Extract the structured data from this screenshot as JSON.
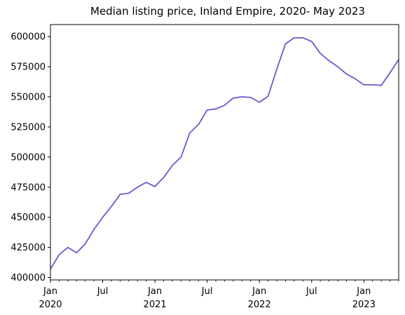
{
  "chart_data": {
    "type": "line",
    "title": "Median listing price, Inland Empire, 2020- May 2023",
    "xlabel": "",
    "ylabel": "",
    "ylim": [
      398000,
      610000
    ],
    "xlim": [
      "2020-01",
      "2023-05"
    ],
    "grid": false,
    "line_color": "#6a5acd",
    "y_ticks": [
      {
        "value": 400000,
        "label": "400000"
      },
      {
        "value": 425000,
        "label": "425000"
      },
      {
        "value": 450000,
        "label": "450000"
      },
      {
        "value": 475000,
        "label": "475000"
      },
      {
        "value": 500000,
        "label": "500000"
      },
      {
        "value": 525000,
        "label": "525000"
      },
      {
        "value": 550000,
        "label": "550000"
      },
      {
        "value": 575000,
        "label": "575000"
      },
      {
        "value": 600000,
        "label": "600000"
      }
    ],
    "x_major_ticks": [
      {
        "date": "2020-01",
        "label": "Jan",
        "year_label": "2020"
      },
      {
        "date": "2020-07",
        "label": "Jul",
        "year_label": ""
      },
      {
        "date": "2021-01",
        "label": "Jan",
        "year_label": "2021"
      },
      {
        "date": "2021-07",
        "label": "Jul",
        "year_label": ""
      },
      {
        "date": "2022-01",
        "label": "Jan",
        "year_label": "2022"
      },
      {
        "date": "2022-07",
        "label": "Jul",
        "year_label": ""
      },
      {
        "date": "2023-01",
        "label": "Jan",
        "year_label": "2023"
      }
    ],
    "series": [
      {
        "x": [
          "2020-01",
          "2020-02",
          "2020-03",
          "2020-04",
          "2020-05",
          "2020-06",
          "2020-07",
          "2020-08",
          "2020-09",
          "2020-10",
          "2020-11",
          "2020-12",
          "2021-01",
          "2021-02",
          "2021-03",
          "2021-04",
          "2021-05",
          "2021-06",
          "2021-07",
          "2021-08",
          "2021-09",
          "2021-10",
          "2021-11",
          "2021-12",
          "2022-01",
          "2022-02",
          "2022-03",
          "2022-04",
          "2022-05",
          "2022-06",
          "2022-07",
          "2022-08",
          "2022-09",
          "2022-10",
          "2022-11",
          "2022-12",
          "2023-01",
          "2023-02",
          "2023-03",
          "2023-04",
          "2023-05"
        ],
        "values": [
          407000,
          419000,
          425000,
          420500,
          428000,
          440000,
          450000,
          459000,
          469000,
          470000,
          475000,
          479000,
          475500,
          483000,
          493000,
          500000,
          520000,
          527000,
          539000,
          540000,
          543000,
          549000,
          550000,
          549500,
          545500,
          550500,
          573000,
          594000,
          599000,
          599000,
          596000,
          586000,
          580000,
          575000,
          569000,
          565000,
          560000,
          560000,
          559500,
          570000,
          581000
        ]
      }
    ]
  }
}
